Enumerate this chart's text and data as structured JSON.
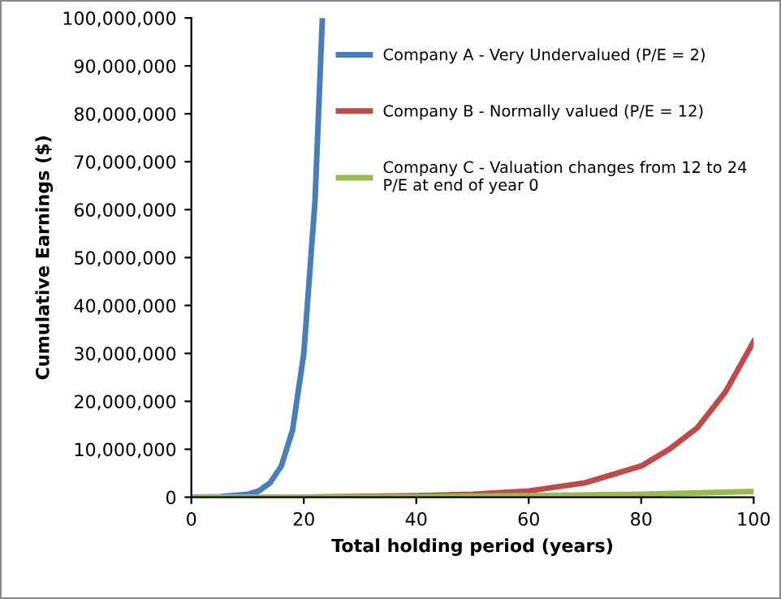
{
  "chart_data": {
    "type": "line",
    "xlabel": "Total holding period (years)",
    "ylabel": "Cumulative Earnings ($)",
    "xlim": [
      0,
      100
    ],
    "xticks": [
      0,
      20,
      40,
      60,
      80,
      100
    ],
    "ylim": [
      0,
      100000000
    ],
    "yticks": [
      {
        "value": 0,
        "label": "0"
      },
      {
        "value": 10000000,
        "label": "10,000,000"
      },
      {
        "value": 20000000,
        "label": "20,000,000"
      },
      {
        "value": 30000000,
        "label": "30,000,000"
      },
      {
        "value": 40000000,
        "label": "40,000,000"
      },
      {
        "value": 50000000,
        "label": "50,000,000"
      },
      {
        "value": 60000000,
        "label": "60,000,000"
      },
      {
        "value": 70000000,
        "label": "70,000,000"
      },
      {
        "value": 80000000,
        "label": "80,000,000"
      },
      {
        "value": 90000000,
        "label": "90,000,000"
      },
      {
        "value": 100000000,
        "label": "100,000,000"
      }
    ],
    "grid": false,
    "legend": "right",
    "marker": "none",
    "line_style": "solid",
    "series": [
      {
        "name": "Company A - Very Undervalued (P/E = 2)",
        "color": "#4a7ebb",
        "x": [
          0,
          5,
          10,
          12,
          14,
          16,
          18,
          20,
          22,
          23.3
        ],
        "values": [
          0,
          100000,
          600000,
          1300000,
          3000000,
          6500000,
          14000000,
          30000000,
          62000000,
          100000000
        ]
      },
      {
        "name": "Company B - Normally valued (P/E = 12)",
        "color": "#be4b48",
        "x": [
          0,
          20,
          40,
          50,
          60,
          70,
          80,
          85,
          90,
          95,
          100
        ],
        "values": [
          0,
          0,
          300000,
          600000,
          1300000,
          3000000,
          6500000,
          10000000,
          14500000,
          22000000,
          32500000
        ]
      },
      {
        "name": "Company C - Valuation changes from 12 to 24 P/E at end of year 0",
        "color": "#98b954",
        "x": [
          0,
          20,
          40,
          60,
          80,
          100
        ],
        "values": [
          0,
          0,
          100000,
          300000,
          600000,
          1200000
        ]
      }
    ]
  }
}
